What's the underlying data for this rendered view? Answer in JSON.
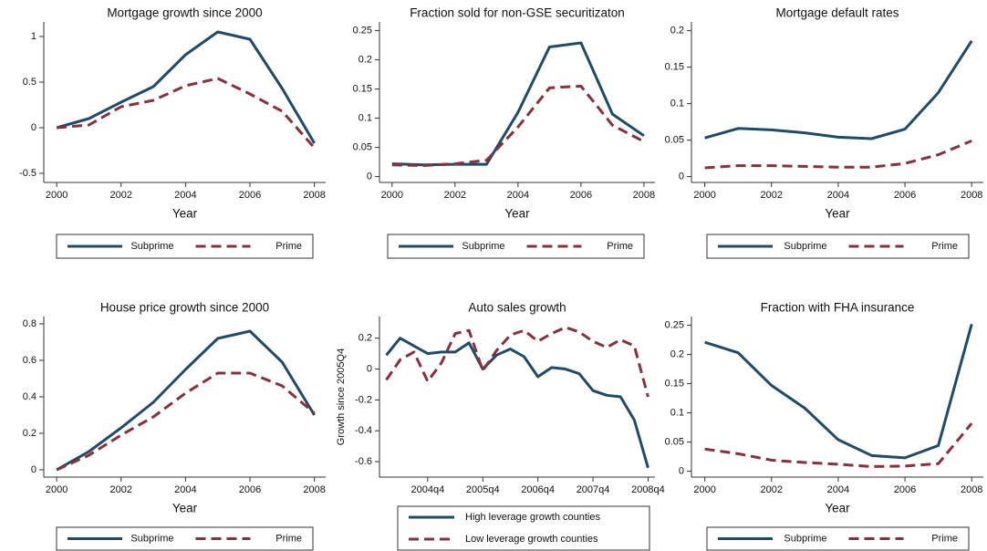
{
  "chart_data": [
    {
      "type": "line",
      "title": "Mortgage growth since 2000",
      "x_label": "Year",
      "x": [
        2000,
        2001,
        2002,
        2003,
        2004,
        2005,
        2006,
        2007,
        2008
      ],
      "xlim": [
        1999.6,
        2008.35
      ],
      "xticks": [
        2000,
        2002,
        2004,
        2006,
        2008
      ],
      "ylim": [
        -0.6,
        1.16
      ],
      "yticks": [
        -0.5,
        0,
        0.5,
        1
      ],
      "legend": "bottom",
      "legend_columns": 2,
      "series": [
        {
          "name": "Subprime",
          "color": "#1d4b6b",
          "line_style": "solid",
          "values": [
            0,
            0.1,
            0.28,
            0.45,
            0.8,
            1.05,
            0.97,
            0.43,
            -0.17
          ]
        },
        {
          "name": "Prime",
          "color": "#8c2f3b",
          "line_style": "dashed",
          "values": [
            0,
            0.03,
            0.23,
            0.3,
            0.46,
            0.54,
            0.37,
            0.18,
            -0.22
          ]
        }
      ]
    },
    {
      "type": "line",
      "title": "Fraction sold for non-GSE securitizaton",
      "x_label": "Year",
      "x": [
        2000,
        2001,
        2002,
        2003,
        2004,
        2005,
        2006,
        2007,
        2008
      ],
      "xlim": [
        1999.6,
        2008.35
      ],
      "xticks": [
        2000,
        2002,
        2004,
        2006,
        2008
      ],
      "ylim": [
        -0.01,
        0.265
      ],
      "yticks": [
        0,
        0.05,
        0.1,
        0.15,
        0.2,
        0.25
      ],
      "legend": "bottom",
      "legend_columns": 2,
      "series": [
        {
          "name": "Subprime",
          "color": "#1d4b6b",
          "line_style": "solid",
          "values": [
            0.022,
            0.02,
            0.021,
            0.021,
            0.11,
            0.222,
            0.229,
            0.107,
            0.07
          ]
        },
        {
          "name": "Prime",
          "color": "#8c2f3b",
          "line_style": "dashed",
          "values": [
            0.02,
            0.019,
            0.022,
            0.028,
            0.085,
            0.152,
            0.155,
            0.088,
            0.06
          ]
        }
      ]
    },
    {
      "type": "line",
      "title": "Mortgage default rates",
      "x_label": "Year",
      "x": [
        2000,
        2001,
        2002,
        2003,
        2004,
        2005,
        2006,
        2007,
        2008
      ],
      "xlim": [
        1999.6,
        2008.35
      ],
      "xticks": [
        2000,
        2002,
        2004,
        2006,
        2008
      ],
      "ylim": [
        -0.008,
        0.212
      ],
      "yticks": [
        0,
        0.05,
        0.1,
        0.15,
        0.2
      ],
      "legend": "bottom",
      "legend_columns": 2,
      "series": [
        {
          "name": "Subprime",
          "color": "#1d4b6b",
          "line_style": "solid",
          "values": [
            0.053,
            0.066,
            0.064,
            0.06,
            0.054,
            0.052,
            0.065,
            0.115,
            0.186
          ]
        },
        {
          "name": "Prime",
          "color": "#8c2f3b",
          "line_style": "dashed",
          "values": [
            0.012,
            0.015,
            0.015,
            0.014,
            0.013,
            0.013,
            0.018,
            0.03,
            0.049
          ]
        }
      ]
    },
    {
      "type": "line",
      "title": "House price growth since 2000",
      "x_label": "Year",
      "x": [
        2000,
        2001,
        2002,
        2003,
        2004,
        2005,
        2006,
        2007,
        2008
      ],
      "xlim": [
        1999.6,
        2008.35
      ],
      "xticks": [
        2000,
        2002,
        2004,
        2006,
        2008
      ],
      "ylim": [
        -0.04,
        0.84
      ],
      "yticks": [
        0,
        0.2,
        0.4,
        0.6,
        0.8
      ],
      "legend": "bottom",
      "legend_columns": 2,
      "series": [
        {
          "name": "Subprime",
          "color": "#1d4b6b",
          "line_style": "solid",
          "values": [
            0,
            0.1,
            0.23,
            0.37,
            0.55,
            0.72,
            0.76,
            0.59,
            0.3
          ]
        },
        {
          "name": "Prime",
          "color": "#8c2f3b",
          "line_style": "dashed",
          "values": [
            0,
            0.08,
            0.19,
            0.29,
            0.42,
            0.53,
            0.53,
            0.46,
            0.31
          ]
        }
      ]
    },
    {
      "type": "line",
      "title": "Auto sales growth",
      "y_label": "Growth since 2005Q4",
      "categories": [
        null,
        null,
        null,
        "2004q4",
        null,
        null,
        null,
        "2005q4",
        null,
        null,
        null,
        "2006q4",
        null,
        null,
        null,
        "2007q4",
        null,
        null,
        null,
        "2008q4"
      ],
      "ylim": [
        -0.7,
        0.34
      ],
      "yticks": [
        -0.6,
        -0.4,
        -0.2,
        0,
        0.2
      ],
      "legend": "bottom",
      "legend_columns": 1,
      "series": [
        {
          "name": "High leverage growth counties",
          "color": "#1d4b6b",
          "line_style": "solid",
          "values": [
            0.09,
            0.2,
            0.15,
            0.1,
            0.11,
            0.11,
            0.17,
            0.0,
            0.09,
            0.13,
            0.08,
            -0.05,
            0.01,
            0.0,
            -0.03,
            -0.14,
            -0.17,
            -0.18,
            -0.33,
            -0.64
          ]
        },
        {
          "name": "Low leverage growth counties",
          "color": "#8c2f3b",
          "line_style": "dashed",
          "values": [
            -0.07,
            0.06,
            0.11,
            -0.08,
            0.04,
            0.23,
            0.25,
            -0.01,
            0.12,
            0.22,
            0.25,
            0.18,
            0.23,
            0.27,
            0.24,
            0.18,
            0.14,
            0.19,
            0.15,
            -0.18
          ]
        }
      ]
    },
    {
      "type": "line",
      "title": "Fraction with FHA insurance",
      "x_label": "Year",
      "x": [
        2000,
        2001,
        2002,
        2003,
        2004,
        2005,
        2006,
        2007,
        2008
      ],
      "xlim": [
        1999.6,
        2008.35
      ],
      "xticks": [
        2000,
        2002,
        2004,
        2006,
        2008
      ],
      "ylim": [
        -0.01,
        0.265
      ],
      "yticks": [
        0,
        0.05,
        0.1,
        0.15,
        0.2,
        0.25
      ],
      "legend": "bottom",
      "legend_columns": 2,
      "series": [
        {
          "name": "Subprime",
          "color": "#1d4b6b",
          "line_style": "solid",
          "values": [
            0.221,
            0.203,
            0.147,
            0.108,
            0.054,
            0.027,
            0.023,
            0.044,
            0.252
          ]
        },
        {
          "name": "Prime",
          "color": "#8c2f3b",
          "line_style": "dashed",
          "values": [
            0.038,
            0.03,
            0.019,
            0.015,
            0.012,
            0.008,
            0.009,
            0.013,
            0.082
          ]
        }
      ]
    }
  ]
}
